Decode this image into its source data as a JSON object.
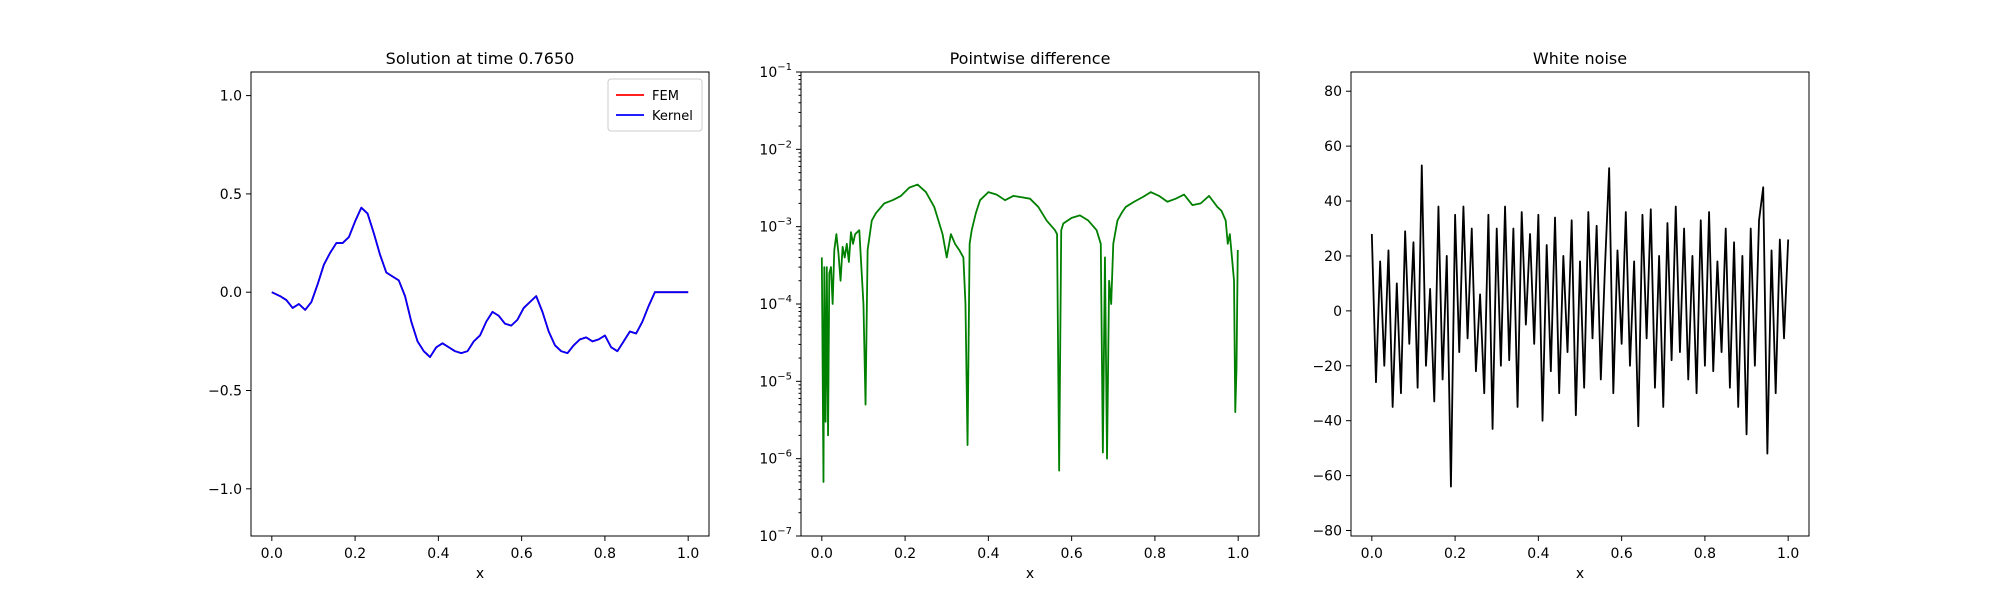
{
  "chart_data": [
    {
      "type": "line",
      "title": "Solution at time 0.7650",
      "xlabel": "x",
      "ylabel": "",
      "xlim": [
        -0.05,
        1.05
      ],
      "ylim": [
        -1.24,
        1.12
      ],
      "yscale": "linear",
      "xticks": [
        0.0,
        0.2,
        0.4,
        0.6,
        0.8,
        1.0
      ],
      "xtick_labels": [
        "0.0",
        "0.2",
        "0.4",
        "0.6",
        "0.8",
        "1.0"
      ],
      "yticks": [
        -1.0,
        -0.5,
        0.0,
        0.5,
        1.0
      ],
      "ytick_labels": [
        "−1.0",
        "−0.5",
        "0.0",
        "0.5",
        "1.0"
      ],
      "legend": {
        "position": "top-right",
        "entries": [
          "FEM",
          "Kernel"
        ]
      },
      "series": [
        {
          "name": "FEM",
          "color": "#ff0000",
          "x": [
            0.0,
            0.02,
            0.035,
            0.05,
            0.065,
            0.08,
            0.095,
            0.11,
            0.125,
            0.14,
            0.155,
            0.17,
            0.185,
            0.2,
            0.215,
            0.23,
            0.245,
            0.26,
            0.275,
            0.29,
            0.305,
            0.32,
            0.335,
            0.35,
            0.365,
            0.38,
            0.395,
            0.41,
            0.425,
            0.44,
            0.455,
            0.47,
            0.485,
            0.5,
            0.515,
            0.53,
            0.545,
            0.56,
            0.575,
            0.59,
            0.605,
            0.62,
            0.635,
            0.65,
            0.665,
            0.68,
            0.695,
            0.71,
            0.725,
            0.74,
            0.755,
            0.77,
            0.785,
            0.8,
            0.815,
            0.83,
            0.845,
            0.86,
            0.875,
            0.89,
            0.905,
            0.92,
            0.935,
            0.95,
            0.965,
            0.98,
            1.0
          ],
          "y": [
            0.0,
            -0.02,
            -0.04,
            -0.08,
            -0.06,
            -0.09,
            -0.05,
            0.04,
            0.14,
            0.2,
            0.25,
            0.25,
            0.28,
            0.36,
            0.43,
            0.4,
            0.3,
            0.19,
            0.1,
            0.08,
            0.06,
            -0.02,
            -0.15,
            -0.25,
            -0.3,
            -0.33,
            -0.28,
            -0.26,
            -0.28,
            -0.3,
            -0.31,
            -0.3,
            -0.25,
            -0.22,
            -0.15,
            -0.1,
            -0.12,
            -0.16,
            -0.17,
            -0.14,
            -0.08,
            -0.05,
            -0.02,
            -0.1,
            -0.2,
            -0.27,
            -0.3,
            -0.31,
            -0.27,
            -0.24,
            -0.23,
            -0.25,
            -0.24,
            -0.22,
            -0.28,
            -0.3,
            -0.25,
            -0.2,
            -0.21,
            -0.15,
            -0.07,
            0.0,
            0.0,
            0.0,
            0.0,
            0.0,
            0.0
          ]
        },
        {
          "name": "Kernel",
          "color": "#0000ff",
          "x": [
            0.0,
            0.02,
            0.035,
            0.05,
            0.065,
            0.08,
            0.095,
            0.11,
            0.125,
            0.14,
            0.155,
            0.17,
            0.185,
            0.2,
            0.215,
            0.23,
            0.245,
            0.26,
            0.275,
            0.29,
            0.305,
            0.32,
            0.335,
            0.35,
            0.365,
            0.38,
            0.395,
            0.41,
            0.425,
            0.44,
            0.455,
            0.47,
            0.485,
            0.5,
            0.515,
            0.53,
            0.545,
            0.56,
            0.575,
            0.59,
            0.605,
            0.62,
            0.635,
            0.65,
            0.665,
            0.68,
            0.695,
            0.71,
            0.725,
            0.74,
            0.755,
            0.77,
            0.785,
            0.8,
            0.815,
            0.83,
            0.845,
            0.86,
            0.875,
            0.89,
            0.905,
            0.92,
            0.935,
            0.95,
            0.965,
            0.98,
            1.0
          ],
          "y": [
            0.0,
            -0.02,
            -0.04,
            -0.08,
            -0.06,
            -0.09,
            -0.05,
            0.04,
            0.14,
            0.2,
            0.25,
            0.25,
            0.28,
            0.36,
            0.43,
            0.4,
            0.3,
            0.19,
            0.1,
            0.08,
            0.06,
            -0.02,
            -0.15,
            -0.25,
            -0.3,
            -0.33,
            -0.28,
            -0.26,
            -0.28,
            -0.3,
            -0.31,
            -0.3,
            -0.25,
            -0.22,
            -0.15,
            -0.1,
            -0.12,
            -0.16,
            -0.17,
            -0.14,
            -0.08,
            -0.05,
            -0.02,
            -0.1,
            -0.2,
            -0.27,
            -0.3,
            -0.31,
            -0.27,
            -0.24,
            -0.23,
            -0.25,
            -0.24,
            -0.22,
            -0.28,
            -0.3,
            -0.25,
            -0.2,
            -0.21,
            -0.15,
            -0.07,
            0.0,
            0.0,
            0.0,
            0.0,
            0.0,
            0.0
          ]
        }
      ]
    },
    {
      "type": "line",
      "title": "Pointwise difference",
      "xlabel": "x",
      "ylabel": "",
      "xlim": [
        -0.05,
        1.05
      ],
      "ylim": [
        1e-07,
        0.1
      ],
      "yscale": "log",
      "xticks": [
        0.0,
        0.2,
        0.4,
        0.6,
        0.8,
        1.0
      ],
      "xtick_labels": [
        "0.0",
        "0.2",
        "0.4",
        "0.6",
        "0.8",
        "1.0"
      ],
      "yticks": [
        1e-07,
        1e-06,
        1e-05,
        0.0001,
        0.001,
        0.01,
        0.1
      ],
      "ytick_labels": [
        {
          "base": "10",
          "exp": "−7"
        },
        {
          "base": "10",
          "exp": "−6"
        },
        {
          "base": "10",
          "exp": "−5"
        },
        {
          "base": "10",
          "exp": "−4"
        },
        {
          "base": "10",
          "exp": "−3"
        },
        {
          "base": "10",
          "exp": "−2"
        },
        {
          "base": "10",
          "exp": "−1"
        }
      ],
      "series": [
        {
          "color": "#008000",
          "x": [
            0.0,
            0.004,
            0.006,
            0.009,
            0.012,
            0.015,
            0.018,
            0.022,
            0.026,
            0.03,
            0.035,
            0.04,
            0.045,
            0.05,
            0.055,
            0.06,
            0.065,
            0.07,
            0.075,
            0.08,
            0.09,
            0.1,
            0.105,
            0.11,
            0.12,
            0.13,
            0.15,
            0.17,
            0.19,
            0.21,
            0.23,
            0.25,
            0.27,
            0.28,
            0.29,
            0.3,
            0.31,
            0.32,
            0.33,
            0.34,
            0.345,
            0.35,
            0.355,
            0.36,
            0.37,
            0.38,
            0.4,
            0.42,
            0.44,
            0.46,
            0.48,
            0.5,
            0.52,
            0.54,
            0.56,
            0.565,
            0.57,
            0.575,
            0.58,
            0.6,
            0.62,
            0.64,
            0.66,
            0.67,
            0.675,
            0.68,
            0.685,
            0.69,
            0.695,
            0.7,
            0.71,
            0.72,
            0.73,
            0.75,
            0.77,
            0.79,
            0.81,
            0.83,
            0.85,
            0.87,
            0.89,
            0.91,
            0.93,
            0.95,
            0.96,
            0.97,
            0.975,
            0.98,
            0.985,
            0.99,
            0.993,
            0.996,
            0.999
          ],
          "y": [
            0.0004,
            5e-07,
            0.0003,
            3e-06,
            0.0003,
            2e-06,
            0.00025,
            0.0003,
            0.0001,
            0.0005,
            0.0008,
            0.00045,
            0.0002,
            0.00055,
            0.0004,
            0.0006,
            0.00035,
            0.00085,
            0.0006,
            0.0008,
            0.0009,
            0.0001,
            5e-06,
            0.0005,
            0.0012,
            0.0015,
            0.002,
            0.0022,
            0.0025,
            0.0032,
            0.0035,
            0.0028,
            0.0018,
            0.0012,
            0.0008,
            0.0004,
            0.0008,
            0.0006,
            0.0005,
            0.0004,
            0.0001,
            1.5e-06,
            0.0006,
            0.0009,
            0.0015,
            0.0022,
            0.0028,
            0.0026,
            0.0022,
            0.0025,
            0.0024,
            0.0023,
            0.0018,
            0.0012,
            0.0009,
            0.0008,
            7e-07,
            0.0009,
            0.0011,
            0.0013,
            0.0014,
            0.0012,
            0.0009,
            0.0006,
            1.2e-06,
            0.0004,
            1e-06,
            0.0002,
            0.0001,
            0.0006,
            0.0012,
            0.0015,
            0.0018,
            0.0021,
            0.0024,
            0.0028,
            0.0025,
            0.0021,
            0.0023,
            0.0026,
            0.0019,
            0.002,
            0.0025,
            0.0018,
            0.0016,
            0.0012,
            0.0006,
            0.0008,
            0.0004,
            0.0002,
            4e-06,
            1.5e-05,
            0.0005
          ]
        }
      ]
    },
    {
      "type": "line",
      "title": "White noise",
      "xlabel": "x",
      "ylabel": "",
      "xlim": [
        -0.05,
        1.05
      ],
      "ylim": [
        -82,
        87
      ],
      "yscale": "linear",
      "xticks": [
        0.0,
        0.2,
        0.4,
        0.6,
        0.8,
        1.0
      ],
      "xtick_labels": [
        "0.0",
        "0.2",
        "0.4",
        "0.6",
        "0.8",
        "1.0"
      ],
      "yticks": [
        -80,
        -60,
        -40,
        -20,
        0,
        20,
        40,
        60,
        80
      ],
      "ytick_labels": [
        "−80",
        "−60",
        "−40",
        "−20",
        "0",
        "20",
        "40",
        "60",
        "80"
      ],
      "series": [
        {
          "color": "#000000",
          "x": [
            0.0,
            0.01,
            0.02,
            0.03,
            0.04,
            0.05,
            0.06,
            0.07,
            0.08,
            0.09,
            0.1,
            0.11,
            0.12,
            0.13,
            0.14,
            0.15,
            0.16,
            0.17,
            0.18,
            0.19,
            0.2,
            0.21,
            0.22,
            0.23,
            0.24,
            0.25,
            0.26,
            0.27,
            0.28,
            0.29,
            0.3,
            0.31,
            0.32,
            0.33,
            0.34,
            0.35,
            0.36,
            0.37,
            0.38,
            0.39,
            0.4,
            0.41,
            0.42,
            0.43,
            0.44,
            0.45,
            0.46,
            0.47,
            0.48,
            0.49,
            0.5,
            0.51,
            0.52,
            0.53,
            0.54,
            0.55,
            0.56,
            0.57,
            0.58,
            0.59,
            0.6,
            0.61,
            0.62,
            0.63,
            0.64,
            0.65,
            0.66,
            0.67,
            0.68,
            0.69,
            0.7,
            0.71,
            0.72,
            0.73,
            0.74,
            0.75,
            0.76,
            0.77,
            0.78,
            0.79,
            0.8,
            0.81,
            0.82,
            0.83,
            0.84,
            0.85,
            0.86,
            0.87,
            0.88,
            0.89,
            0.9,
            0.91,
            0.92,
            0.93,
            0.94,
            0.95,
            0.96,
            0.97,
            0.98,
            0.99,
            1.0
          ],
          "y": [
            28,
            -26,
            18,
            -20,
            22,
            -35,
            10,
            -30,
            29,
            -12,
            25,
            -28,
            53,
            -20,
            8,
            -33,
            38,
            -25,
            20,
            -64,
            35,
            -15,
            38,
            -10,
            30,
            -22,
            6,
            -30,
            35,
            -43,
            30,
            -20,
            38,
            -18,
            30,
            -35,
            36,
            -5,
            28,
            -12,
            35,
            -40,
            24,
            -22,
            34,
            -30,
            20,
            -15,
            33,
            -38,
            18,
            -28,
            36,
            -10,
            31,
            -25,
            16,
            52,
            -30,
            22,
            -12,
            36,
            -20,
            18,
            -42,
            35,
            -10,
            37,
            -28,
            20,
            -35,
            32,
            -18,
            38,
            -15,
            30,
            -25,
            20,
            -30,
            33,
            -20,
            36,
            -22,
            18,
            -15,
            30,
            -28,
            25,
            -35,
            20,
            -45,
            30,
            -20,
            33,
            45,
            -52,
            22,
            -30,
            26,
            -10,
            26
          ]
        }
      ]
    }
  ]
}
